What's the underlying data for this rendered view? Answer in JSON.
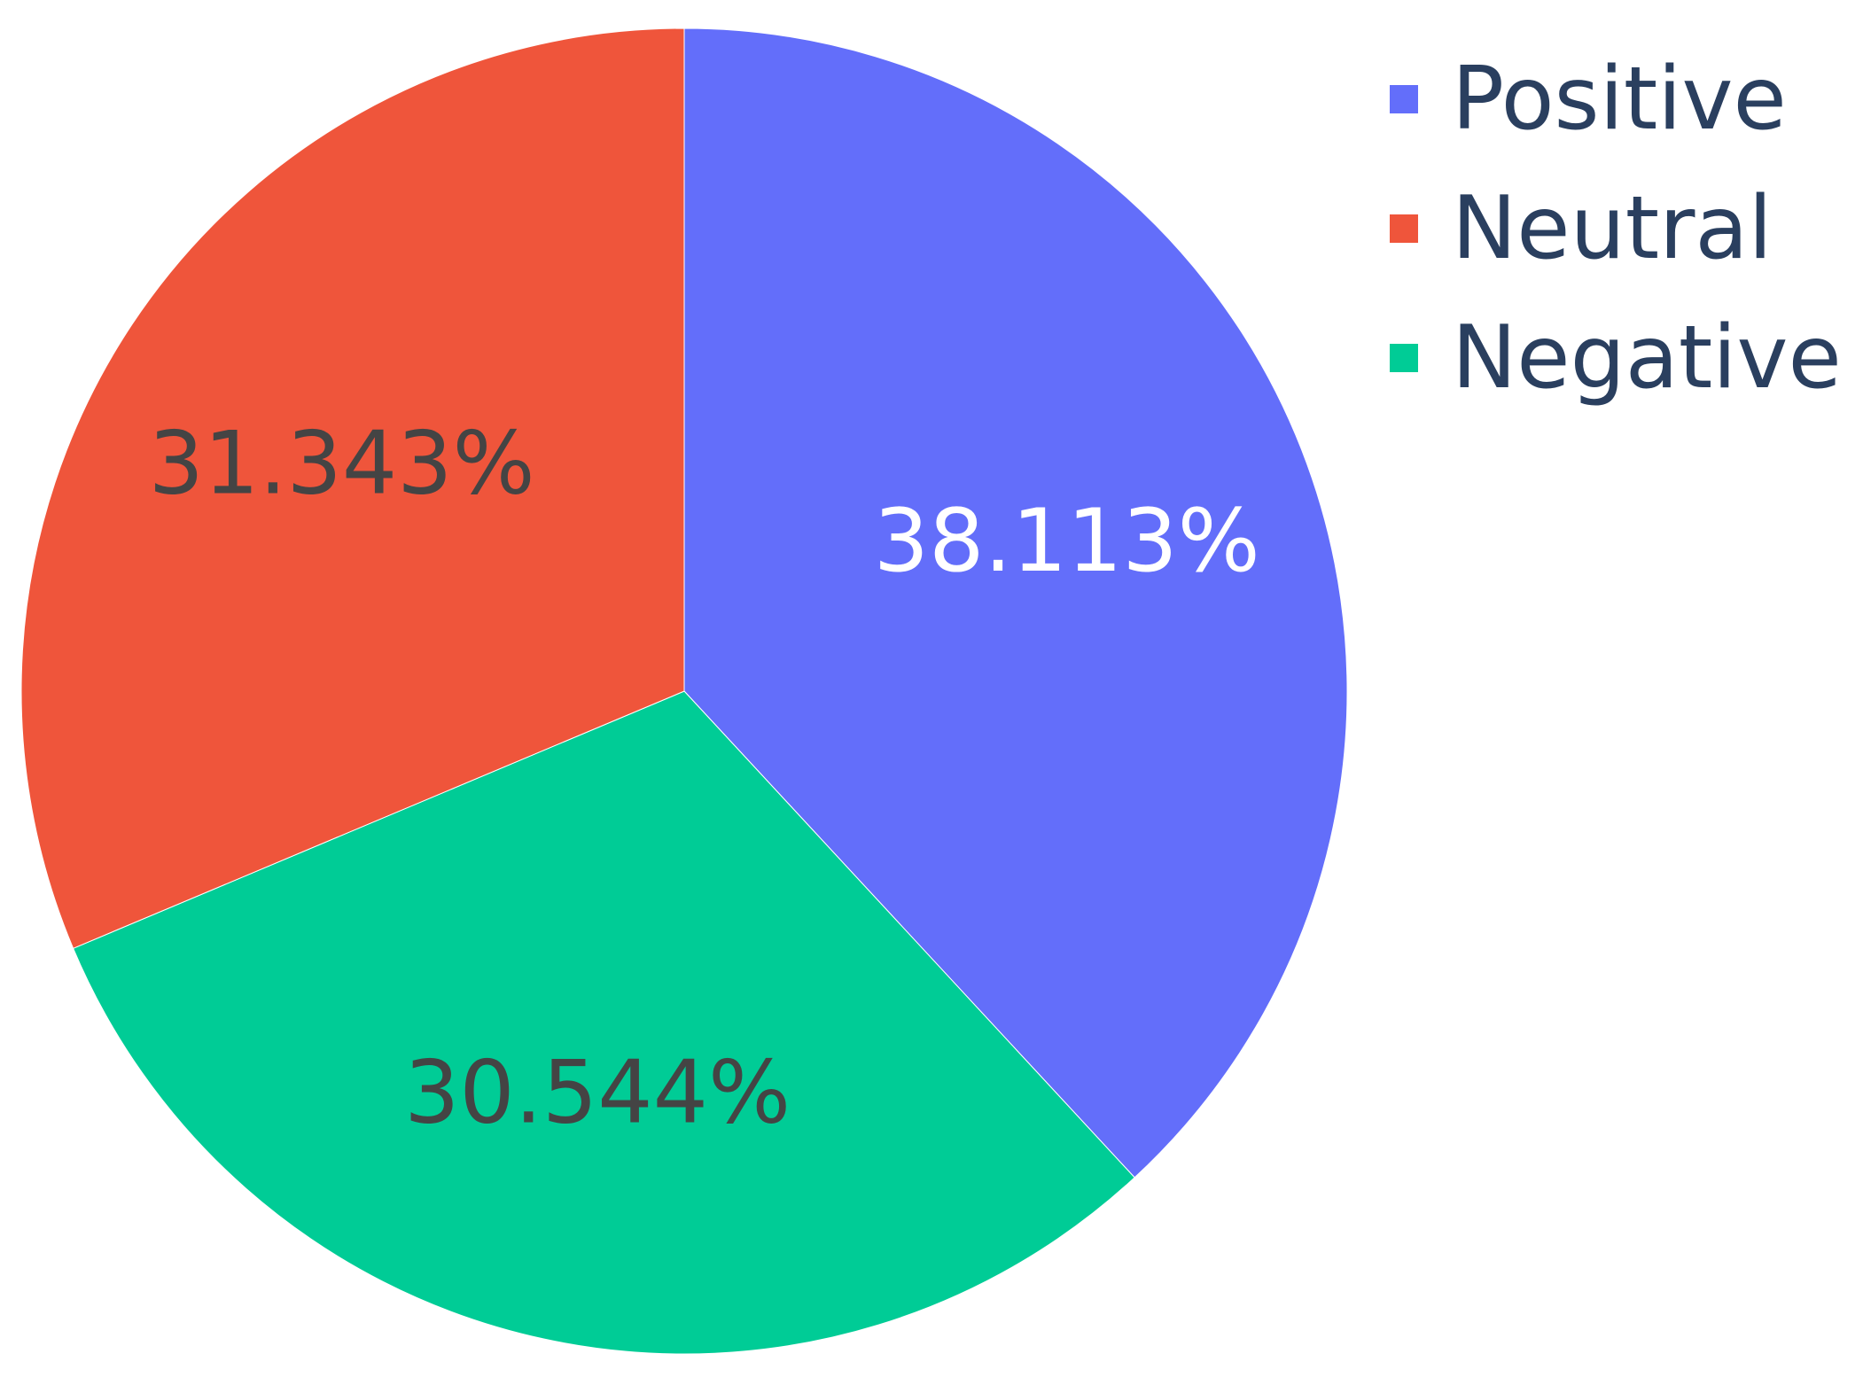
{
  "chart_data": {
    "type": "pie",
    "title": "",
    "direction": "clockwise",
    "start_angle_deg": 0,
    "legend_placement": "top-right",
    "slices": [
      {
        "label": "Positive",
        "value": 38.113,
        "display": "38.113%",
        "color": "#636efa",
        "text_color": "#ffffff"
      },
      {
        "label": "Negative",
        "value": 30.544,
        "display": "30.544%",
        "color": "#00cc96",
        "text_color": "#444444"
      },
      {
        "label": "Neutral",
        "value": 31.343,
        "display": "31.343%",
        "color": "#ef553b",
        "text_color": "#444444"
      }
    ],
    "legend": [
      {
        "label": "Positive",
        "color": "#636efa"
      },
      {
        "label": "Neutral",
        "color": "#ef553b"
      },
      {
        "label": "Negative",
        "color": "#00cc96"
      }
    ]
  }
}
